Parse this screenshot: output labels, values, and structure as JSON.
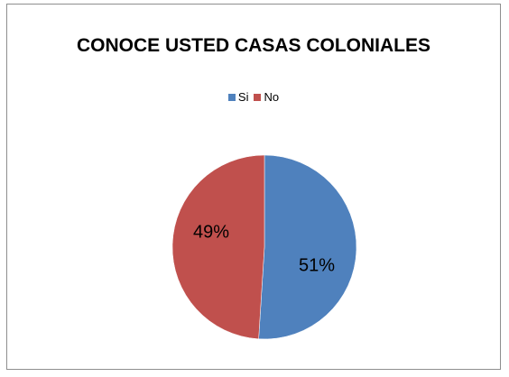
{
  "chart_data": {
    "type": "pie",
    "title": "CONOCE USTED CASAS COLONIALES",
    "categories": [
      "Si",
      "No"
    ],
    "values": [
      51,
      49
    ],
    "data_labels": [
      "51%",
      "49%"
    ],
    "colors": [
      "#4f81bd",
      "#c0504d"
    ],
    "legend_position": "top"
  }
}
